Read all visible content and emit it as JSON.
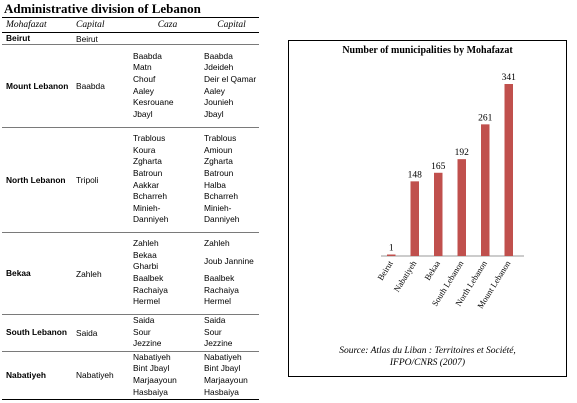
{
  "page_title": "Administrative division  of Lebanon",
  "table": {
    "headers": [
      "Mohafazat",
      "Capital",
      "Caza",
      "Capital"
    ],
    "rows": [
      {
        "mohafazat": "Beirut",
        "capital": "Beirut",
        "cazas": [],
        "caza_capitals": []
      },
      {
        "mohafazat": "Mount Lebanon",
        "capital": "Baabda",
        "cazas": [
          "Baabda",
          "Matn",
          "Chouf",
          "Aaley",
          "Kesrouane",
          "Jbayl"
        ],
        "caza_capitals": [
          "Baabda",
          "Jdeideh",
          "Deir el Qamar",
          "Aaley",
          "Jounieh",
          "Jbayl"
        ]
      },
      {
        "mohafazat": "North Lebanon",
        "capital": "Tripoli",
        "cazas": [
          "Trablous",
          "Koura",
          "Zgharta",
          "Batroun",
          "Aakkar",
          "Bcharreh",
          "Minieh-",
          "Danniyeh"
        ],
        "caza_capitals": [
          "Trablous",
          "Amioun",
          "Zgharta",
          "Batroun",
          "Halba",
          "Bcharreh",
          "Minieh-",
          "Danniyeh"
        ]
      },
      {
        "mohafazat": "Bekaa",
        "capital": "Zahleh",
        "cazas": [
          "Zahleh",
          "Bekaa",
          "Gharbi",
          "Baalbek",
          "Rachaiya",
          "Hermel"
        ],
        "caza_capitals": [
          "Zahleh",
          "",
          "Joub Jannine",
          "Baalbek",
          "Rachaiya",
          "Hermel"
        ]
      },
      {
        "mohafazat": "South Lebanon",
        "capital": "Saida",
        "cazas": [
          "Saida",
          "Sour",
          "Jezzine"
        ],
        "caza_capitals": [
          "Saida",
          "Sour",
          "Jezzine"
        ]
      },
      {
        "mohafazat": "Nabatiyeh",
        "capital": "Nabatiyeh",
        "cazas": [
          "Nabatiyeh",
          "Bint Jbayl",
          "Marjaayoun",
          "Hasbaiya"
        ],
        "caza_capitals": [
          "Nabatiyeh",
          "Bint Jbayl",
          "Marjaayoun",
          "Hasbaiya"
        ]
      }
    ]
  },
  "chart_data": {
    "type": "bar",
    "title": "Number of municipalities by Mohafazat",
    "categories": [
      "Beirut",
      "Nabatiyeh",
      "Bekaa",
      "South Lebanon",
      "North Lebanon",
      "Mount Lebanon"
    ],
    "values": [
      1,
      148,
      165,
      192,
      261,
      341
    ],
    "ylim": [
      0,
      341
    ],
    "grid": false,
    "bar_color": "#c0504d",
    "source": [
      "Source: Atlas du Liban : Territoires et Société,",
      "IFPO/CNRS (2007)"
    ]
  }
}
